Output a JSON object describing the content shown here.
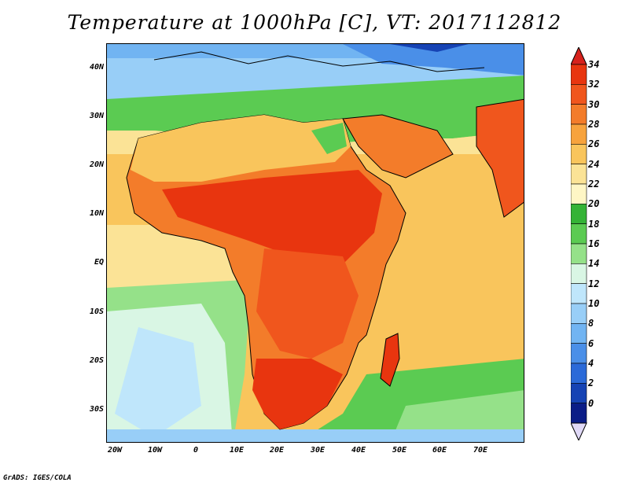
{
  "title": "Temperature at 1000hPa [C], VT: 2017112812",
  "credit": "GrADS: IGES/COLA",
  "map": {
    "lat_labels": [
      "40N",
      "30N",
      "20N",
      "10N",
      "EQ",
      "10S",
      "20S",
      "30S"
    ],
    "lon_labels": [
      "20W",
      "10W",
      "0",
      "10E",
      "20E",
      "30E",
      "40E",
      "50E",
      "60E",
      "70E"
    ]
  },
  "colorbar": {
    "levels": [
      "34",
      "32",
      "30",
      "28",
      "26",
      "24",
      "22",
      "20",
      "18",
      "16",
      "14",
      "12",
      "10",
      "8",
      "6",
      "4",
      "2",
      "0"
    ],
    "colors": [
      "#e8350f",
      "#f0561d",
      "#f37c2a",
      "#f7a33d",
      "#f9c55c",
      "#fbe396",
      "#fef6c5",
      "#34b336",
      "#5bcb52",
      "#95e189",
      "#d9f6e4",
      "#bfe6fb",
      "#98cef7",
      "#71b4f2",
      "#4a8fe8",
      "#2b6ad8",
      "#1643b4",
      "#0b1d87"
    ],
    "top_arrow_color": "#d7221c",
    "bottom_arrow_color": "#e0d9f7"
  },
  "colors": {
    "ocean_warm": "#f9c55c",
    "ocean_cool": "#95e189",
    "land_hot": "#e8350f",
    "europe": "#98cef7"
  }
}
